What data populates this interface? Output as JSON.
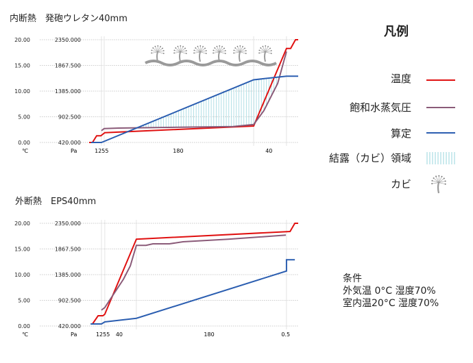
{
  "colors": {
    "temperature": "#e01010",
    "saturation": "#8a5a78",
    "calculated": "#2a5db0",
    "condensation": "#a8dbe3",
    "mold": "#9a9a9a"
  },
  "legend": {
    "title": "凡例",
    "items": [
      {
        "label": "温度",
        "icon": "red-line"
      },
      {
        "label": "飽和水蒸気圧",
        "icon": "purple-line"
      },
      {
        "label": "算定",
        "icon": "blue-line"
      },
      {
        "label": "結露（カビ）領域",
        "icon": "hatch"
      },
      {
        "label": "カビ",
        "icon": "mold-icon"
      }
    ]
  },
  "conditions": {
    "title": "条件",
    "lines": [
      "外気温  0°C 湿度70%",
      "室内温20°C 湿度70%"
    ]
  },
  "chart_data": [
    {
      "type": "line",
      "title": "内断熱　発砲ウレタン40mm",
      "y_left_unit": "℃",
      "y_right_unit": "Pa",
      "yticks": [
        "0.00",
        "5.00",
        "10.00",
        "15.00",
        "20.00"
      ],
      "yticks_pa": [
        "420.000",
        "902.500",
        "1385.000",
        "1867.500",
        "2350.000"
      ],
      "ylim": [
        0,
        20
      ],
      "xticks": [
        {
          "x": 6,
          "label": "1255"
        },
        {
          "x": 42.6,
          "label": "180"
        },
        {
          "x": 86,
          "label": "40"
        }
      ],
      "vgrid": [
        5.9,
        7.2,
        78.7,
        94.4
      ],
      "mold": true,
      "series": [
        {
          "key": "temperature",
          "points": [
            [
              0,
              0
            ],
            [
              1.6,
              0
            ],
            [
              3.6,
              1.3
            ],
            [
              5.6,
              1.3
            ],
            [
              7.5,
              1.9
            ],
            [
              78.7,
              3.2
            ],
            [
              94.4,
              18.3
            ],
            [
              96.4,
              18.3
            ],
            [
              98.7,
              20
            ],
            [
              100,
              20
            ]
          ]
        },
        {
          "key": "saturation",
          "points": [
            [
              5.9,
              2.3
            ],
            [
              7.2,
              2.7
            ],
            [
              14.1,
              2.8
            ],
            [
              68.9,
              3.1
            ],
            [
              78.7,
              3.5
            ],
            [
              83.6,
              6.2
            ],
            [
              90.2,
              11.5
            ],
            [
              94.4,
              17.7
            ]
          ]
        },
        {
          "key": "calculated",
          "points": [
            [
              1,
              0
            ],
            [
              5.9,
              0
            ],
            [
              78.7,
              12.2
            ],
            [
              94.4,
              12.9
            ],
            [
              100,
              12.9
            ]
          ]
        }
      ]
    },
    {
      "type": "line",
      "title": "外断熱　EPS40mm",
      "y_left_unit": "℃",
      "y_right_unit": "Pa",
      "yticks": [
        "0.00",
        "5.00",
        "10.00",
        "15.00",
        "20.00"
      ],
      "yticks_pa": [
        "420.000",
        "902.500",
        "1385.000",
        "1867.500",
        "2350.000"
      ],
      "ylim": [
        0,
        20
      ],
      "xticks": [
        {
          "x": 6.6,
          "label": "1255"
        },
        {
          "x": 14.4,
          "label": "40"
        },
        {
          "x": 57.4,
          "label": "180"
        },
        {
          "x": 94,
          "label": "0.5"
        }
      ],
      "vgrid": [
        5.9,
        7.5,
        22.6,
        94.4
      ],
      "mold": false,
      "series": [
        {
          "key": "temperature",
          "points": [
            [
              1.6,
              0.4
            ],
            [
              4.3,
              2
            ],
            [
              6.6,
              2
            ],
            [
              7.5,
              2.3
            ],
            [
              22.6,
              16.9
            ],
            [
              96.1,
              18.4
            ],
            [
              98.4,
              20
            ],
            [
              100,
              20
            ]
          ]
        },
        {
          "key": "saturation",
          "points": [
            [
              5.9,
              3.1
            ],
            [
              7.5,
              3.6
            ],
            [
              16.4,
              9.1
            ],
            [
              19.7,
              11.7
            ],
            [
              22.6,
              15.7
            ],
            [
              27.2,
              15.7
            ],
            [
              30.5,
              16
            ],
            [
              38.4,
              16
            ],
            [
              44.9,
              16.4
            ],
            [
              66.6,
              16.9
            ],
            [
              94.1,
              17.7
            ]
          ]
        },
        {
          "key": "calculated",
          "points": [
            [
              0.7,
              0.4
            ],
            [
              5.9,
              0.4
            ],
            [
              7.5,
              0.8
            ],
            [
              22.6,
              1.5
            ],
            [
              94.4,
              10.7
            ],
            [
              94.4,
              12.9
            ],
            [
              98.4,
              12.9
            ]
          ]
        }
      ]
    }
  ]
}
